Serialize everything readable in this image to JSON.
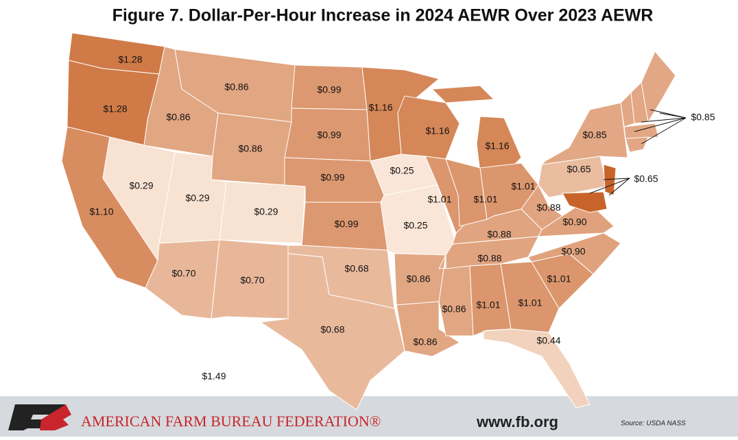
{
  "chart_data": {
    "type": "choropleth",
    "title": "Figure 7. Dollar-Per-Hour Increase in 2024 AEWR Over 2023 AEWR",
    "color_low": "#fae6d8",
    "color_high": "#c8642a",
    "regions": [
      {
        "value": 1.28,
        "label": "$1.28"
      },
      {
        "value": 1.28,
        "label": "$1.28"
      },
      {
        "value": 1.1,
        "label": "$1.10"
      },
      {
        "value": 0.29,
        "label": "$0.29"
      },
      {
        "value": 0.86,
        "label": "$0.86"
      },
      {
        "value": 0.86,
        "label": "$0.86"
      },
      {
        "value": 0.86,
        "label": "$0.86"
      },
      {
        "value": 0.29,
        "label": "$0.29"
      },
      {
        "value": 0.29,
        "label": "$0.29"
      },
      {
        "value": 0.7,
        "label": "$0.70"
      },
      {
        "value": 0.7,
        "label": "$0.70"
      },
      {
        "value": 0.99,
        "label": "$0.99"
      },
      {
        "value": 0.99,
        "label": "$0.99"
      },
      {
        "value": 0.99,
        "label": "$0.99"
      },
      {
        "value": 0.99,
        "label": "$0.99"
      },
      {
        "value": 0.68,
        "label": "$0.68"
      },
      {
        "value": 0.68,
        "label": "$0.68"
      },
      {
        "value": 1.16,
        "label": "$1.16"
      },
      {
        "value": 0.25,
        "label": "$0.25"
      },
      {
        "value": 0.25,
        "label": "$0.25"
      },
      {
        "value": 0.86,
        "label": "$0.86"
      },
      {
        "value": 0.86,
        "label": "$0.86"
      },
      {
        "value": 0.86,
        "label": "$0.86"
      },
      {
        "value": 1.01,
        "label": "$1.01"
      },
      {
        "value": 1.01,
        "label": "$1.01"
      },
      {
        "value": 0.44,
        "label": "$0.44"
      },
      {
        "value": 1.01,
        "label": "$1.01"
      },
      {
        "value": 0.9,
        "label": "$0.90"
      },
      {
        "value": 0.88,
        "label": "$0.88"
      },
      {
        "value": 0.88,
        "label": "$0.88"
      },
      {
        "value": 1.16,
        "label": "$1.16"
      },
      {
        "value": 1.16,
        "label": "$1.16"
      },
      {
        "value": 1.01,
        "label": "$1.01"
      },
      {
        "value": 1.01,
        "label": "$1.01"
      },
      {
        "value": 1.01,
        "label": "$1.01"
      },
      {
        "value": 0.88,
        "label": "$0.88"
      },
      {
        "value": 0.9,
        "label": "$0.90"
      },
      {
        "value": 0.65,
        "label": "$0.65"
      },
      {
        "value": 0.85,
        "label": "$0.85"
      },
      {
        "value": 0.85,
        "label": "$0.85"
      },
      {
        "value": 0.65,
        "label": "$0.65"
      },
      {
        "value": 1.49,
        "label": "$1.49"
      }
    ]
  },
  "footer": {
    "organization": "AMERICAN FARM BUREAU FEDERATION®",
    "website": "www.fb.org",
    "source": "Source: USDA NASS"
  }
}
